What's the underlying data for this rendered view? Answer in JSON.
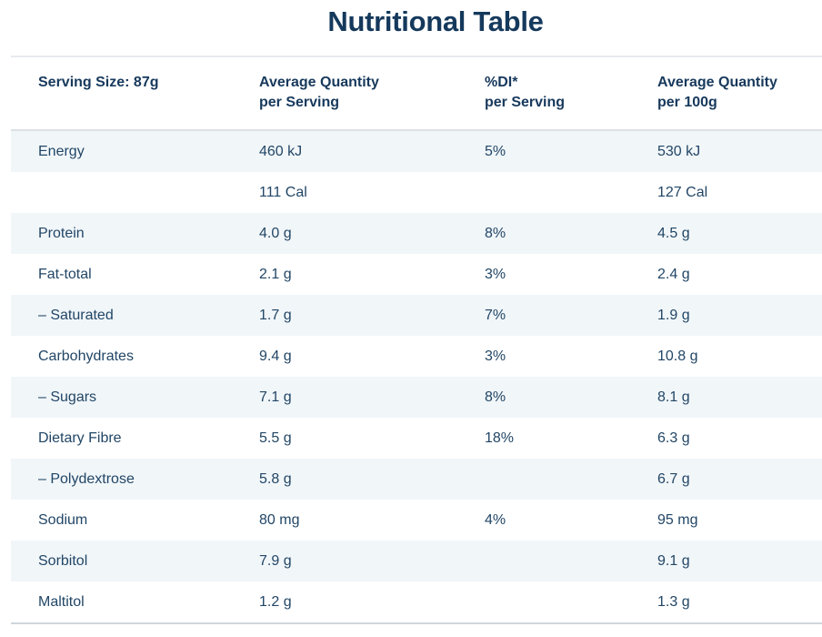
{
  "title": "Nutritional Table",
  "colors": {
    "accent_navy": "#17395C",
    "body_text": "#224666",
    "row_stripe": "#F1F6F9",
    "divider_light": "#DCE1E5",
    "divider_bottom": "#CFD7DD"
  },
  "table": {
    "headers": [
      {
        "line1": "Serving Size: 87g",
        "line2": ""
      },
      {
        "line1": "Average Quantity",
        "line2": "per Serving"
      },
      {
        "line1": "%DI*",
        "line2": "per Serving"
      },
      {
        "line1": "Average Quantity",
        "line2": "per 100g"
      }
    ],
    "rows": [
      {
        "label": "Energy",
        "per_serving": "460 kJ",
        "di": "5%",
        "per_100g": "530 kJ"
      },
      {
        "label": "",
        "per_serving": "111 Cal",
        "di": "",
        "per_100g": "127 Cal"
      },
      {
        "label": "Protein",
        "per_serving": "4.0 g",
        "di": "8%",
        "per_100g": "4.5 g"
      },
      {
        "label": "Fat-total",
        "per_serving": "2.1 g",
        "di": "3%",
        "per_100g": "2.4 g"
      },
      {
        "label": "– Saturated",
        "per_serving": "1.7 g",
        "di": "7%",
        "per_100g": "1.9 g"
      },
      {
        "label": "Carbohydrates",
        "per_serving": "9.4 g",
        "di": "3%",
        "per_100g": "10.8 g"
      },
      {
        "label": "– Sugars",
        "per_serving": "7.1 g",
        "di": "8%",
        "per_100g": "8.1 g"
      },
      {
        "label": "Dietary Fibre",
        "per_serving": "5.5 g",
        "di": "18%",
        "per_100g": "6.3 g"
      },
      {
        "label": "– Polydextrose",
        "per_serving": "5.8 g",
        "di": "",
        "per_100g": "6.7 g"
      },
      {
        "label": "Sodium",
        "per_serving": "80 mg",
        "di": "4%",
        "per_100g": "95 mg"
      },
      {
        "label": "Sorbitol",
        "per_serving": "7.9 g",
        "di": "",
        "per_100g": "9.1 g"
      },
      {
        "label": "Maltitol",
        "per_serving": "1.2 g",
        "di": "",
        "per_100g": "1.3 g"
      }
    ]
  }
}
